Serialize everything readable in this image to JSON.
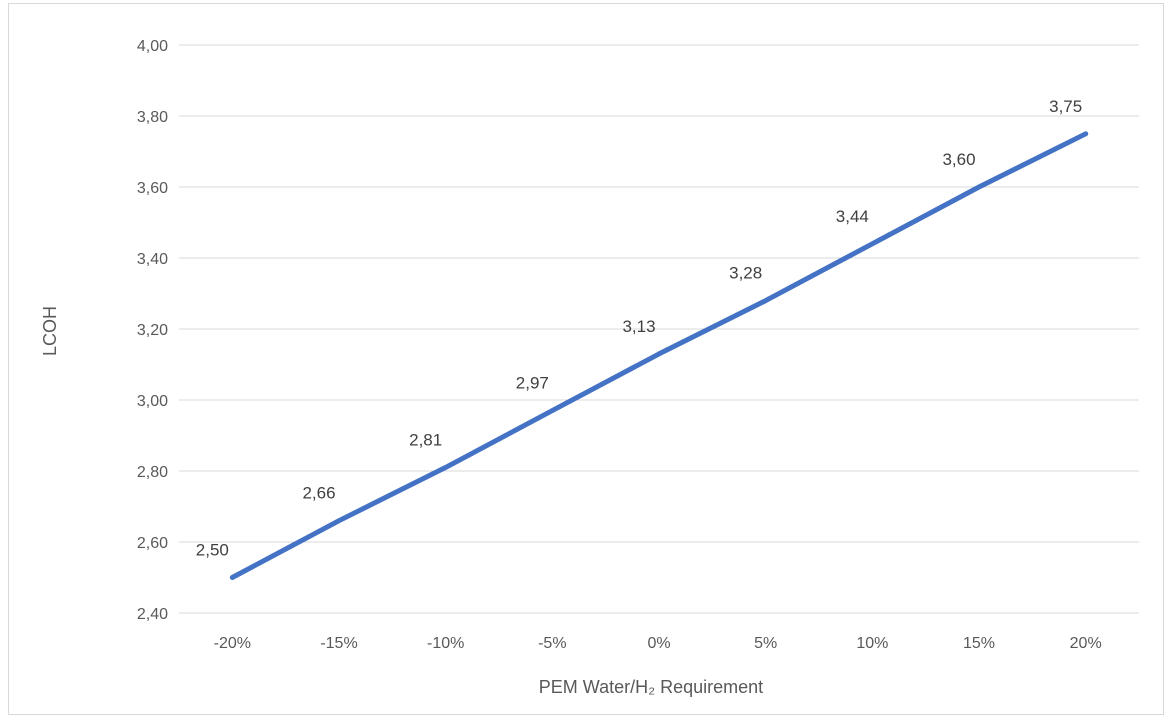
{
  "chart_data": {
    "type": "line",
    "title": "",
    "xlabel": "PEM Water/H₂ Requirement",
    "ylabel": "LCOH",
    "categories": [
      "-20%",
      "-15%",
      "-10%",
      "-5%",
      "0%",
      "5%",
      "10%",
      "15%",
      "20%"
    ],
    "series": [
      {
        "values": [
          2.5,
          2.66,
          2.81,
          2.97,
          3.13,
          3.28,
          3.44,
          3.6,
          3.75
        ],
        "data_labels": [
          "2,50",
          "2,66",
          "2,81",
          "2,97",
          "3,13",
          "3,28",
          "3,44",
          "3,60",
          "3,75"
        ],
        "color": "#4472c4"
      }
    ],
    "ylim": [
      2.4,
      4.0
    ],
    "yticks": [
      2.4,
      2.6,
      2.8,
      3.0,
      3.2,
      3.4,
      3.6,
      3.8,
      4.0
    ],
    "ytick_labels": [
      "2,40",
      "2,60",
      "2,80",
      "3,00",
      "3,20",
      "3,40",
      "3,60",
      "3,80",
      "4,00"
    ],
    "grid": true,
    "legend": "none",
    "colors": {
      "line": "#4472c4",
      "grid": "#d9d9d9",
      "tick_text": "#595959",
      "label_text": "#404040"
    }
  }
}
